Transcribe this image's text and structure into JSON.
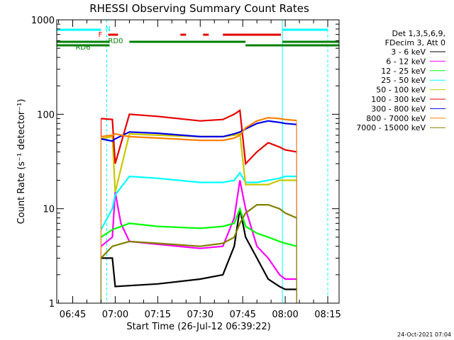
{
  "chart_data": {
    "type": "line",
    "title": "RHESSI Observing Summary Count Rates",
    "xlabel": "Start Time (26-Jul-12 06:39:22)",
    "ylabel": "Count Rate (s⁻¹ detector⁻¹)",
    "y_scale": "log",
    "ylim": [
      1,
      1000
    ],
    "xlim_minutes": [
      "06:39:22",
      "08:19:00"
    ],
    "x_ticks": [
      "06:45",
      "07:00",
      "07:15",
      "07:30",
      "07:45",
      "08:00",
      "08:15"
    ],
    "y_ticks": [
      "1",
      "10",
      "100",
      "1000"
    ],
    "timestamp": "24-Oct-2021 07:04",
    "legend_header": [
      "Det 1,3,5,6,9,",
      "FDecim 3, Att 0"
    ],
    "flag_labels": {
      "night": "N",
      "flare": "F",
      "rd0": "RD0",
      "rd6": "RD6"
    },
    "data_window": [
      "06:55:00",
      "08:05:30"
    ],
    "colors": {
      "night": "#00ffff",
      "flare": "#e60000",
      "rd": "#008000"
    },
    "flags": {
      "night": [
        [
          "06:39:22",
          "06:55:00"
        ],
        [
          "07:59:00",
          "08:15:00"
        ]
      ],
      "flare": [
        [
          "06:57:30",
          "07:01:00"
        ],
        [
          "07:23:00",
          "07:25:00"
        ],
        [
          "07:31:00",
          "07:33:00"
        ],
        [
          "07:38:00",
          "07:58:30"
        ]
      ],
      "rd0": [
        [
          "06:39:22",
          "06:58:00"
        ],
        [
          "07:05:00",
          "07:46:00"
        ],
        [
          "07:59:00",
          "08:19:00"
        ]
      ],
      "rd6": [
        [
          "06:39:22",
          "06:58:00"
        ],
        [
          "07:46:00",
          "08:10:00"
        ],
        [
          "08:10:00",
          "08:19:00"
        ]
      ]
    },
    "night_markers": [
      "06:39:22",
      "06:57:00",
      "07:59:00",
      "08:15:00"
    ],
    "series": [
      {
        "name": "3 - 6 keV",
        "color": "#000000",
        "points": [
          [
            "06:55",
            3
          ],
          [
            "06:59",
            3
          ],
          [
            "07:00",
            1.5
          ],
          [
            "07:15",
            1.6
          ],
          [
            "07:30",
            1.8
          ],
          [
            "07:38",
            2
          ],
          [
            "07:42",
            4
          ],
          [
            "07:44",
            10
          ],
          [
            "07:46",
            5
          ],
          [
            "07:50",
            3
          ],
          [
            "07:54",
            1.8
          ],
          [
            "07:58",
            1.5
          ],
          [
            "08:00",
            1.4
          ],
          [
            "08:04",
            1.4
          ]
        ]
      },
      {
        "name": "6 - 12 keV",
        "color": "#ff00ff",
        "points": [
          [
            "06:55",
            4
          ],
          [
            "06:59",
            5
          ],
          [
            "07:00",
            15
          ],
          [
            "07:02",
            7
          ],
          [
            "07:05",
            4.5
          ],
          [
            "07:15",
            4.2
          ],
          [
            "07:30",
            3.8
          ],
          [
            "07:38",
            4
          ],
          [
            "07:42",
            8
          ],
          [
            "07:44",
            20
          ],
          [
            "07:46",
            10
          ],
          [
            "07:50",
            4
          ],
          [
            "07:54",
            3
          ],
          [
            "07:58",
            2
          ],
          [
            "08:00",
            1.8
          ],
          [
            "08:04",
            1.8
          ]
        ]
      },
      {
        "name": "12 - 25 keV",
        "color": "#00ff00",
        "points": [
          [
            "06:55",
            5
          ],
          [
            "06:59",
            6
          ],
          [
            "07:05",
            7
          ],
          [
            "07:15",
            6.5
          ],
          [
            "07:30",
            6.2
          ],
          [
            "07:38",
            6.5
          ],
          [
            "07:42",
            7
          ],
          [
            "07:44",
            10
          ],
          [
            "07:46",
            6.5
          ],
          [
            "07:50",
            5.5
          ],
          [
            "07:54",
            5
          ],
          [
            "07:58",
            4.5
          ],
          [
            "08:00",
            4.3
          ],
          [
            "08:04",
            4
          ]
        ]
      },
      {
        "name": "25 - 50 keV",
        "color": "#00ffff",
        "points": [
          [
            "06:55",
            6
          ],
          [
            "06:59",
            10
          ],
          [
            "07:00",
            14
          ],
          [
            "07:05",
            22
          ],
          [
            "07:15",
            21
          ],
          [
            "07:30",
            19
          ],
          [
            "07:38",
            19
          ],
          [
            "07:42",
            20
          ],
          [
            "07:44",
            24
          ],
          [
            "07:46",
            19
          ],
          [
            "07:50",
            19
          ],
          [
            "07:54",
            20
          ],
          [
            "07:58",
            21
          ],
          [
            "08:00",
            22
          ],
          [
            "08:04",
            22
          ]
        ]
      },
      {
        "name": "50 - 100 keV",
        "color": "#c8c800",
        "points": [
          [
            "06:55",
            55
          ],
          [
            "06:59",
            58
          ],
          [
            "07:00",
            15
          ],
          [
            "07:05",
            62
          ],
          [
            "07:15",
            60
          ],
          [
            "07:30",
            58
          ],
          [
            "07:38",
            58
          ],
          [
            "07:42",
            60
          ],
          [
            "07:44",
            62
          ],
          [
            "07:46",
            18
          ],
          [
            "07:50",
            18
          ],
          [
            "07:54",
            18
          ],
          [
            "07:58",
            20
          ],
          [
            "08:00",
            20
          ],
          [
            "08:04",
            20
          ]
        ]
      },
      {
        "name": "100 - 300 keV",
        "color": "#e60000",
        "points": [
          [
            "06:55",
            90
          ],
          [
            "06:59",
            88
          ],
          [
            "07:00",
            30
          ],
          [
            "07:05",
            100
          ],
          [
            "07:15",
            95
          ],
          [
            "07:30",
            85
          ],
          [
            "07:38",
            88
          ],
          [
            "07:42",
            100
          ],
          [
            "07:44",
            110
          ],
          [
            "07:46",
            30
          ],
          [
            "07:50",
            40
          ],
          [
            "07:54",
            50
          ],
          [
            "07:58",
            45
          ],
          [
            "08:00",
            42
          ],
          [
            "08:04",
            40
          ]
        ]
      },
      {
        "name": "300 - 800 keV",
        "color": "#0000e6",
        "points": [
          [
            "06:55",
            55
          ],
          [
            "06:59",
            52
          ],
          [
            "07:00",
            55
          ],
          [
            "07:05",
            65
          ],
          [
            "07:15",
            63
          ],
          [
            "07:30",
            58
          ],
          [
            "07:38",
            58
          ],
          [
            "07:42",
            62
          ],
          [
            "07:44",
            65
          ],
          [
            "07:46",
            70
          ],
          [
            "07:50",
            80
          ],
          [
            "07:54",
            85
          ],
          [
            "07:58",
            82
          ],
          [
            "08:00",
            80
          ],
          [
            "08:04",
            78
          ]
        ]
      },
      {
        "name": "800 - 7000 keV",
        "color": "#ff8000",
        "points": [
          [
            "06:55",
            58
          ],
          [
            "06:59",
            60
          ],
          [
            "07:00",
            62
          ],
          [
            "07:05",
            58
          ],
          [
            "07:15",
            56
          ],
          [
            "07:30",
            53
          ],
          [
            "07:38",
            53
          ],
          [
            "07:42",
            56
          ],
          [
            "07:44",
            60
          ],
          [
            "07:46",
            72
          ],
          [
            "07:50",
            85
          ],
          [
            "07:54",
            92
          ],
          [
            "07:58",
            90
          ],
          [
            "08:00",
            88
          ],
          [
            "08:04",
            86
          ]
        ]
      },
      {
        "name": "7000 - 15000 keV",
        "color": "#808000",
        "points": [
          [
            "06:55",
            3
          ],
          [
            "06:59",
            4
          ],
          [
            "07:05",
            4.5
          ],
          [
            "07:15",
            4.3
          ],
          [
            "07:30",
            4
          ],
          [
            "07:38",
            4.3
          ],
          [
            "07:42",
            5
          ],
          [
            "07:44",
            7
          ],
          [
            "07:46",
            9
          ],
          [
            "07:50",
            11
          ],
          [
            "07:54",
            11
          ],
          [
            "07:58",
            10
          ],
          [
            "08:00",
            9
          ],
          [
            "08:04",
            8
          ]
        ]
      }
    ]
  }
}
